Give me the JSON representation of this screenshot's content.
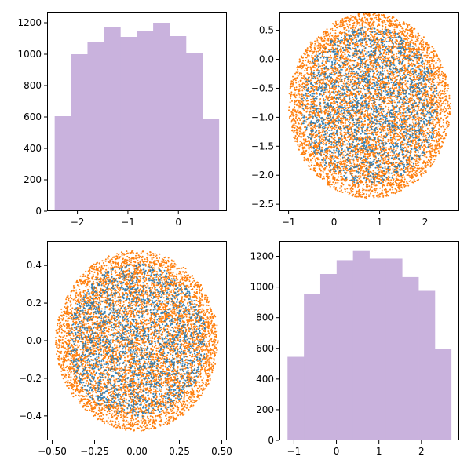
{
  "colors": {
    "hist_fill": "#c9b2dd",
    "scatter_inner": "#1f77b4",
    "scatter_outer": "#ff7f0e",
    "axes": "#000000",
    "background": "#ffffff"
  },
  "chart_data": [
    {
      "type": "bar",
      "subtype": "histogram",
      "position": "top-left",
      "bin_edges": [
        -2.45,
        -2.125,
        -1.8,
        -1.475,
        -1.15,
        -0.825,
        -0.5,
        -0.175,
        0.15,
        0.475,
        0.8
      ],
      "counts": [
        605,
        1000,
        1080,
        1170,
        1110,
        1145,
        1200,
        1115,
        1005,
        585
      ],
      "xlim": [
        -2.6,
        0.96
      ],
      "ylim": [
        0,
        1270
      ],
      "xticks": [
        -2,
        -1,
        0
      ],
      "xtick_labels": [
        "−2",
        "−1",
        "0"
      ],
      "yticks": [
        0,
        200,
        400,
        600,
        800,
        1000,
        1200
      ],
      "ytick_labels": [
        "0",
        "200",
        "400",
        "600",
        "800",
        "1000",
        "1200"
      ],
      "grid": false
    },
    {
      "type": "scatter",
      "position": "top-right",
      "shape": "disc",
      "center": [
        0.78,
        -0.8
      ],
      "radii": [
        1.78,
        1.6
      ],
      "n_points": 6000,
      "series": [
        {
          "color": "#1f77b4",
          "role": "inner points (sparser)"
        },
        {
          "color": "#ff7f0e",
          "role": "dense points covering the disc"
        }
      ],
      "xlim": [
        -1.2,
        2.75
      ],
      "ylim": [
        -2.62,
        0.82
      ],
      "xticks": [
        -1,
        0,
        1,
        2
      ],
      "xtick_labels": [
        "−1",
        "0",
        "1",
        "2"
      ],
      "yticks": [
        0.5,
        0.0,
        -0.5,
        -1.0,
        -1.5,
        -2.0,
        -2.5
      ],
      "ytick_labels": [
        "0.5",
        "0.0",
        "−0.5",
        "−1.0",
        "−1.5",
        "−2.0",
        "−2.5"
      ],
      "grid": false
    },
    {
      "type": "scatter",
      "position": "bottom-left",
      "shape": "disc",
      "center": [
        0,
        0
      ],
      "radii": [
        0.48,
        0.48
      ],
      "n_points": 6000,
      "series": [
        {
          "color": "#1f77b4",
          "role": "inner points (sparser)"
        },
        {
          "color": "#ff7f0e",
          "role": "dense points covering the disc"
        }
      ],
      "xlim": [
        -0.53,
        0.53
      ],
      "ylim": [
        -0.53,
        0.53
      ],
      "xticks": [
        -0.5,
        -0.25,
        0.0,
        0.25,
        0.5
      ],
      "xtick_labels": [
        "−0.50",
        "−0.25",
        "0.00",
        "0.25",
        "0.50"
      ],
      "yticks": [
        0.4,
        0.2,
        0.0,
        -0.2,
        -0.4
      ],
      "ytick_labels": [
        "0.4",
        "0.2",
        "0.0",
        "−0.2",
        "−0.4"
      ],
      "grid": false
    },
    {
      "type": "bar",
      "subtype": "histogram",
      "position": "bottom-right",
      "bin_edges": [
        -1.15,
        -0.765,
        -0.38,
        0.005,
        0.39,
        0.775,
        1.16,
        1.545,
        1.93,
        2.315,
        2.7
      ],
      "counts": [
        545,
        955,
        1085,
        1175,
        1235,
        1185,
        1185,
        1065,
        975,
        595
      ],
      "xlim": [
        -1.34,
        2.89
      ],
      "ylim": [
        0,
        1300
      ],
      "xticks": [
        -1,
        0,
        1,
        2
      ],
      "xtick_labels": [
        "−1",
        "0",
        "1",
        "2"
      ],
      "yticks": [
        0,
        200,
        400,
        600,
        800,
        1000,
        1200
      ],
      "ytick_labels": [
        "0",
        "200",
        "400",
        "600",
        "800",
        "1000",
        "1200"
      ],
      "grid": false
    }
  ]
}
